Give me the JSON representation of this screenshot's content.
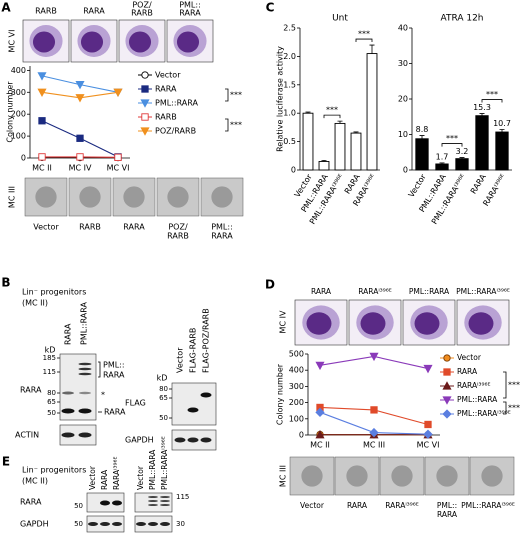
{
  "panel_a": {
    "letter": "A",
    "stage_top": "MC VI",
    "top_labels": [
      [
        "RARB"
      ],
      [
        "RARA"
      ],
      [
        "POZ/",
        "RARB"
      ],
      [
        "PML::",
        "RARA"
      ]
    ],
    "stage_bottom": "MC III",
    "bottom_labels": [
      [
        "Vector"
      ],
      [
        "RARB"
      ],
      [
        "RARA"
      ],
      [
        "POZ/",
        "RARB"
      ],
      [
        "PML::",
        "RARA"
      ]
    ]
  },
  "panel_b": {
    "letter": "B",
    "header": [
      "Lin⁻ progenitors",
      "(MC II)"
    ],
    "lanes_left": [
      "RARA",
      "PML::RARA"
    ],
    "kd_left": "kD",
    "markers_left": [
      185,
      115,
      80,
      65,
      50
    ],
    "fusion_label": [
      "PML::",
      "RARA"
    ],
    "star": "*",
    "band_label": "RARA",
    "rows_left": [
      "RARA",
      "ACTIN"
    ],
    "lanes_right": [
      "Vector",
      "FLAG-RARB",
      "FLAG-POZ/RARB"
    ],
    "kd_right": "kD",
    "markers_right": [
      80,
      65,
      50
    ],
    "rows_right": [
      "FLAG",
      "GAPDH"
    ]
  },
  "panel_c": {
    "letter": "C"
  },
  "panel_d": {
    "letter": "D",
    "stage_top": "MC IV",
    "top_labels": [
      "RARA",
      "RARAᴵ³⁹⁶ᴱ",
      "PML::RARA",
      "PML::RARAᴵ³⁹⁶ᴱ"
    ],
    "stage_bottom": "MC III",
    "bottom_labels": [
      [
        "Vector"
      ],
      [
        "RARA"
      ],
      [
        "RARAᴵ³⁹⁶ᴱ"
      ],
      [
        "PML::",
        "RARA"
      ],
      [
        "PML::RARAᴵ³⁹⁶ᴱ"
      ]
    ]
  },
  "panel_e": {
    "letter": "E",
    "header": [
      "Lin⁻ progenitors",
      "(MC II)"
    ],
    "lanes": [
      "Vector",
      "RARA",
      "RARAᴵ³⁹⁶ᴱ",
      "Vector",
      "PML::RARA",
      "PML::RARAᴵ³⁹⁶ᴱ"
    ],
    "rows": [
      "RARA",
      "GAPDH"
    ],
    "markers_left": [
      50,
      50
    ],
    "markers_right": [
      115,
      30
    ]
  },
  "chart_data": [
    {
      "type": "line",
      "y_label": "Colony number",
      "categories": [
        "MC II",
        "MC IV",
        "MC VI"
      ],
      "ylim": [
        0,
        420
      ],
      "yticks": [
        0,
        100,
        200,
        300,
        400
      ],
      "series": [
        {
          "name": "Vector",
          "color": "#000000",
          "marker": "circle-open",
          "values": [
            3,
            2,
            2
          ]
        },
        {
          "name": "RARA",
          "color": "#1a2a80",
          "marker": "square",
          "values": [
            170,
            90,
            5
          ]
        },
        {
          "name": "PML::RARA",
          "color": "#4a8fe0",
          "marker": "triangle-down",
          "values": [
            375,
            335,
            300
          ]
        },
        {
          "name": "RARB",
          "color": "#e03a3a",
          "marker": "square-open",
          "values": [
            5,
            5,
            3
          ]
        },
        {
          "name": "POZ/RARB",
          "color": "#f0901e",
          "marker": "triangle-down",
          "values": [
            300,
            275,
            300
          ]
        }
      ],
      "significance": [
        "***",
        "***"
      ]
    },
    {
      "type": "bar",
      "title": "Unt",
      "y_label": "Relative luciferase activity",
      "categories": [
        "Vector",
        "PML::RARA",
        "PML::RARAᴵ³⁹⁶ᴱ",
        "RARA",
        "RARAᴵ³⁹⁶ᴱ"
      ],
      "values": [
        1.0,
        0.15,
        0.82,
        0.65,
        2.05
      ],
      "errors": [
        0.02,
        0.02,
        0.04,
        0.02,
        0.15
      ],
      "color": "#ffffff",
      "edgecolor": "#000000",
      "ylim": [
        0,
        2.5
      ],
      "yticks": [
        0,
        0.5,
        {
          "value": 1,
          "label": "1.0"
        },
        1.5,
        {
          "value": 2,
          "label": "2.0"
        },
        2.5
      ],
      "significance": [
        "***",
        "***"
      ]
    },
    {
      "type": "bar",
      "title": "ATRA 12h",
      "categories": [
        "Vector",
        "PML::RARA",
        "PML::RARAᴵ³⁹⁶ᴱ",
        "RARA",
        "RARAᴵ³⁹⁶ᴱ"
      ],
      "values": [
        8.8,
        1.7,
        3.2,
        15.3,
        10.7
      ],
      "errors": [
        0.9,
        0.3,
        0.3,
        0.6,
        0.7
      ],
      "color": "#000000",
      "edgecolor": "#000000",
      "ylim": [
        0,
        40
      ],
      "yticks": [
        0,
        10,
        20,
        30,
        40
      ],
      "data_labels": true,
      "significance": [
        "***",
        "***"
      ]
    },
    {
      "type": "line",
      "y_label": "Colony number",
      "categories": [
        "MC II",
        "MC III",
        "MC VI"
      ],
      "ylim": [
        0,
        500
      ],
      "yticks": [
        0,
        100,
        200,
        300,
        400,
        500
      ],
      "series": [
        {
          "name": "Vector",
          "color": "#f08c1e",
          "marker": "circle",
          "values": [
            3,
            2,
            2
          ]
        },
        {
          "name": "RARA",
          "color": "#e04a2a",
          "marker": "square",
          "values": [
            170,
            155,
            65
          ]
        },
        {
          "name": "RARAᴵ³⁹⁶ᴱ",
          "color": "#6b1a1a",
          "marker": "triangle-up",
          "values": [
            2,
            2,
            2
          ]
        },
        {
          "name": "PML::RARA",
          "color": "#8a3ab9",
          "marker": "triangle-down",
          "values": [
            430,
            485,
            410
          ]
        },
        {
          "name": "PML::RARAᴵ³⁹⁶ᴱ",
          "color": "#5a7ee0",
          "marker": "diamond",
          "values": [
            140,
            15,
            5
          ]
        }
      ],
      "significance": [
        "***",
        "***"
      ]
    }
  ]
}
